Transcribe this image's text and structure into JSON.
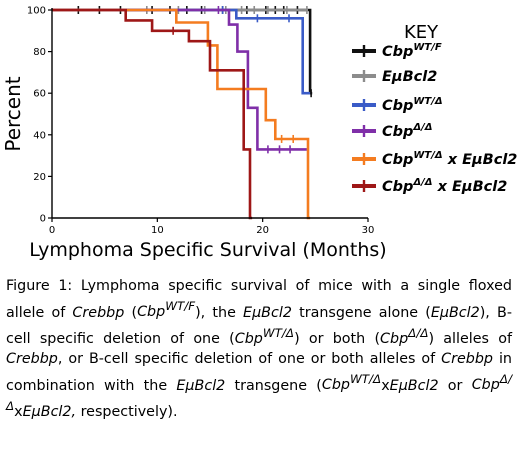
{
  "chart_data": {
    "type": "line",
    "xlabel": "Lymphoma Specific Survival (Months)",
    "ylabel": "Percent",
    "xlim": [
      0,
      30
    ],
    "ylim": [
      0,
      100
    ],
    "x_ticks": [
      "0",
      "10",
      "20",
      "30"
    ],
    "y_ticks": [
      "0",
      "20",
      "40",
      "60",
      "80",
      "100"
    ],
    "legend_title": "KEY",
    "legend_position": "right",
    "series": [
      {
        "name": "Cbp^WT/F",
        "color": "#111111",
        "steps": [
          [
            0,
            100
          ],
          [
            24.5,
            100
          ],
          [
            24.5,
            60
          ],
          [
            24.7,
            60
          ]
        ],
        "censor_x": [
          2.5,
          4.5,
          6.5,
          9.5,
          11.2,
          12.8,
          14.2,
          16.2,
          18.5,
          20.3,
          21.2,
          22,
          23.3,
          24.6
        ],
        "censor_y": [
          100,
          100,
          100,
          100,
          100,
          100,
          100,
          100,
          100,
          100,
          100,
          100,
          100,
          60
        ]
      },
      {
        "name": "EμBcl2",
        "color": "#8c8c8c",
        "steps": [
          [
            0,
            100
          ],
          [
            24.3,
            100
          ]
        ],
        "censor_x": [
          9,
          12,
          14.5,
          16.5,
          18,
          19.2,
          20.5,
          22.3,
          24.2
        ],
        "censor_y": [
          100,
          100,
          100,
          100,
          100,
          100,
          100,
          100,
          100
        ]
      },
      {
        "name": "Cbp^WT/Δ",
        "color": "#3a5bc7",
        "steps": [
          [
            0,
            100
          ],
          [
            17.5,
            100
          ],
          [
            17.5,
            96
          ],
          [
            23.8,
            96
          ],
          [
            23.8,
            60
          ],
          [
            24.5,
            60
          ]
        ],
        "censor_x": [
          16.2,
          19.5,
          22.5
        ],
        "censor_y": [
          100,
          96,
          96
        ]
      },
      {
        "name": "Cbp^Δ/Δ",
        "color": "#7f2fa8",
        "steps": [
          [
            0,
            100
          ],
          [
            16.8,
            100
          ],
          [
            16.8,
            93
          ],
          [
            17.6,
            93
          ],
          [
            17.6,
            80
          ],
          [
            18.6,
            80
          ],
          [
            18.6,
            53
          ],
          [
            19.5,
            53
          ],
          [
            19.5,
            33
          ],
          [
            24.2,
            33
          ]
        ],
        "censor_x": [
          15.8,
          20.5,
          21.6,
          22.6
        ],
        "censor_y": [
          100,
          33,
          33,
          33
        ]
      },
      {
        "name": "Cbp^WT/Δ x EμBcl2",
        "color": "#f47c20",
        "steps": [
          [
            0,
            100
          ],
          [
            11.8,
            100
          ],
          [
            11.8,
            94
          ],
          [
            14.8,
            94
          ],
          [
            14.8,
            83
          ],
          [
            15.7,
            83
          ],
          [
            15.7,
            62
          ],
          [
            20.3,
            62
          ],
          [
            20.3,
            47
          ],
          [
            21.2,
            47
          ],
          [
            21.2,
            38
          ],
          [
            24.3,
            38
          ],
          [
            24.3,
            0
          ],
          [
            24.5,
            0
          ]
        ],
        "censor_x": [
          21.8,
          22.9
        ],
        "censor_y": [
          38,
          38
        ]
      },
      {
        "name": "Cbp^Δ/Δ x EμBcl2",
        "color": "#9e1717",
        "steps": [
          [
            0,
            100
          ],
          [
            7,
            100
          ],
          [
            7,
            95
          ],
          [
            9.5,
            95
          ],
          [
            9.5,
            90
          ],
          [
            13,
            90
          ],
          [
            13,
            85
          ],
          [
            15,
            85
          ],
          [
            15,
            71
          ],
          [
            18.2,
            71
          ],
          [
            18.2,
            33
          ],
          [
            18.8,
            33
          ],
          [
            18.8,
            0
          ],
          [
            19,
            0
          ]
        ],
        "censor_x": [
          11.5
        ],
        "censor_y": [
          90
        ]
      }
    ]
  },
  "legend": [
    {
      "main": "Cbp",
      "sup": "WT/F",
      "tail": ""
    },
    {
      "main": "EμBcl2",
      "sup": "",
      "tail": ""
    },
    {
      "main": "Cbp",
      "sup": "WT/Δ",
      "tail": ""
    },
    {
      "main": "Cbp",
      "sup": "Δ/Δ",
      "tail": ""
    },
    {
      "main": "Cbp",
      "sup": "WT/Δ",
      "tail": " x EμBcl2"
    },
    {
      "main": "Cbp",
      "sup": "Δ/Δ",
      "tail": " x EμBcl2"
    }
  ],
  "caption": {
    "p1": "Figure 1: Lymphoma specific survival of mice with a single floxed allele of ",
    "crebbp1": "Crebbp",
    "p2": " (",
    "cbp1": "Cbp",
    "cbp1_sup": "WT/F",
    "p3": "), the ",
    "bcl2_1": "EμBcl2",
    "p4": " transgene alone (",
    "bcl2_2": "EμBcl2",
    "p5": "), B-cell specific deletion of one (",
    "cbp2": "Cbp",
    "cbp2_sup": "WT/Δ",
    "p6": ") or both (",
    "cbp3": "Cbp",
    "cbp3_sup": "Δ/Δ",
    "p7": ") alleles of ",
    "crebbp2": "Crebbp",
    "p8": ", or B-cell specific deletion of one or both alleles of ",
    "crebbp3": "Crebbp",
    "p9": " in combination with the ",
    "bcl2_3": "EμBcl2",
    "p10": " transgene (",
    "cbp4": "Cbp",
    "cbp4_sup": "WT/Δ",
    "x1": "x",
    "bcl2_4": "EμBcl2",
    "p11": " or ",
    "cbp5": "Cbp",
    "cbp5_sup": "Δ/Δ",
    "x2": "x",
    "bcl2_5": "EμBcl2,",
    "p12": " respectively)."
  }
}
